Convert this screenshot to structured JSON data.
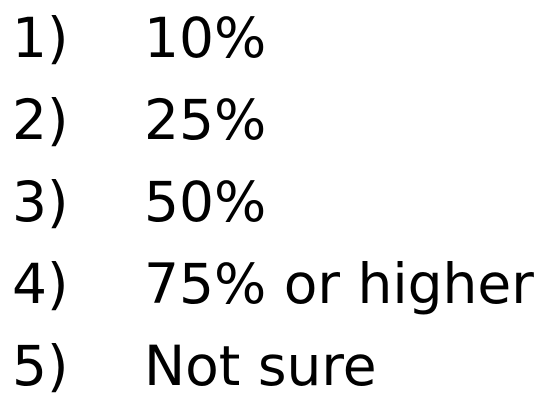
{
  "options": [
    {
      "number": "1)",
      "text": "10%"
    },
    {
      "number": "2)",
      "text": "25%"
    },
    {
      "number": "3)",
      "text": "50%"
    },
    {
      "number": "4)",
      "text": "75% or higher"
    },
    {
      "number": "5)",
      "text": "Not sure"
    }
  ]
}
